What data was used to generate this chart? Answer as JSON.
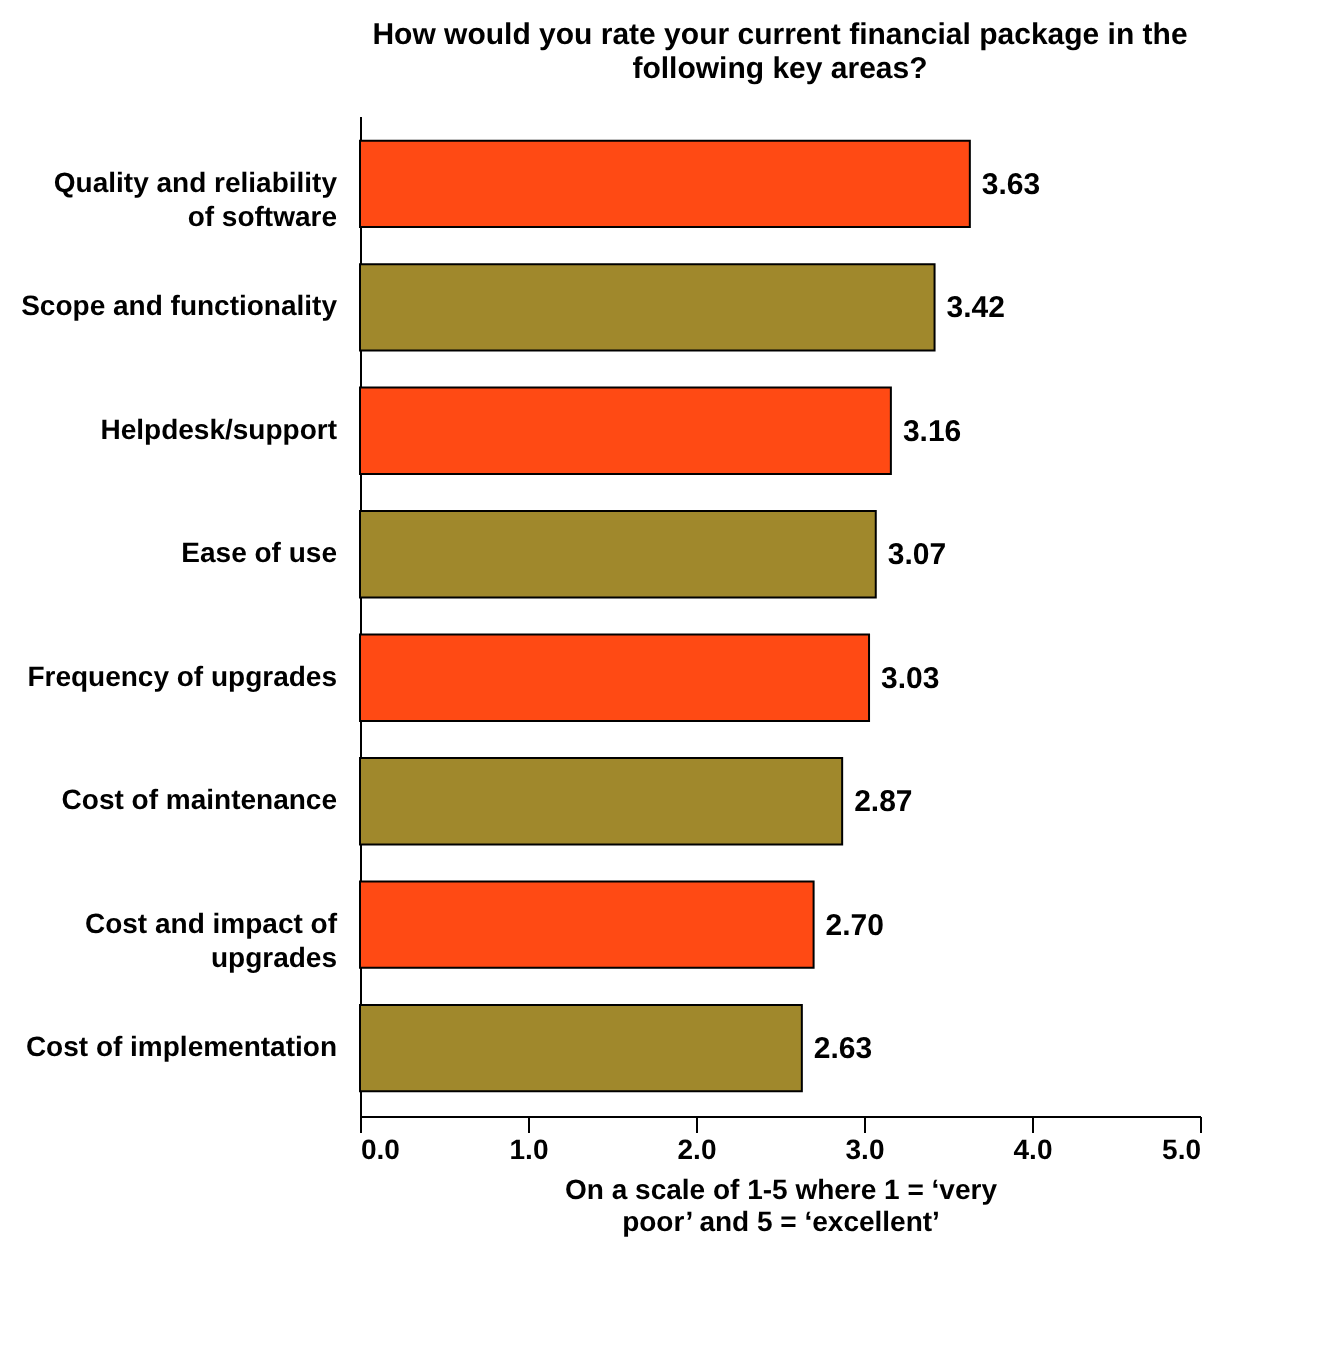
{
  "chart_data": {
    "type": "bar",
    "orientation": "horizontal",
    "title": "How would you rate your current financial package in the following key areas?",
    "xlabel": "On a scale of 1-5 where 1 = ‘very poor’ and 5 = ‘excellent’",
    "categories": [
      "Quality and reliability of software",
      "Scope and functionality",
      "Helpdesk/support",
      "Ease of use",
      "Frequency of upgrades",
      "Cost of maintenance",
      "Cost and impact of upgrades",
      "Cost of implementation"
    ],
    "values": [
      3.63,
      3.42,
      3.16,
      3.07,
      3.03,
      2.87,
      2.7,
      2.63
    ],
    "colors": [
      "#ff4a14",
      "#a0882c",
      "#ff4a14",
      "#a0882c",
      "#ff4a14",
      "#a0882c",
      "#ff4a14",
      "#a0882c"
    ],
    "value_labels": [
      "3.63",
      "3.42",
      "3.16",
      "3.07",
      "3.03",
      "2.87",
      "2.70",
      "2.63"
    ],
    "xlim": [
      0,
      5
    ],
    "xticks": [
      {
        "value": 0,
        "label": "0.0"
      },
      {
        "value": 1,
        "label": "1.0"
      },
      {
        "value": 2,
        "label": "2.0"
      },
      {
        "value": 3,
        "label": "3.0"
      },
      {
        "value": 4,
        "label": "4.0"
      },
      {
        "value": 5,
        "label": "5.0"
      }
    ],
    "grid": false
  }
}
